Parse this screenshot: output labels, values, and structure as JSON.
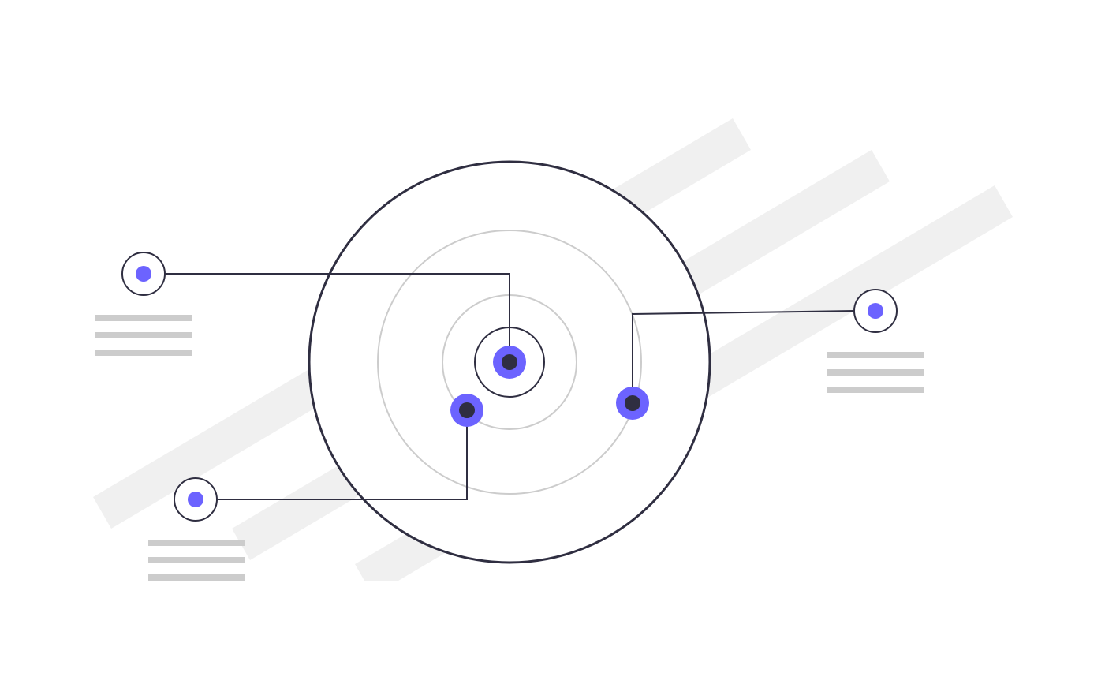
{
  "illustration": {
    "name": "radar-target-diagram",
    "colors": {
      "background": "#ffffff",
      "stripe": "#f0f0f0",
      "outline": "#2f2e41",
      "ring": "#cccccc",
      "accent": "#6c63ff",
      "text_line": "#cccccc"
    },
    "rings": [
      "outer-ring",
      "middle-ring",
      "inner-ring",
      "core-ring"
    ],
    "markers": [
      "center-marker",
      "lower-left-marker",
      "right-marker"
    ],
    "callouts": [
      {
        "name": "callout-top-left",
        "text_lines": 3
      },
      {
        "name": "callout-bottom-left",
        "text_lines": 3
      },
      {
        "name": "callout-right",
        "text_lines": 3
      }
    ]
  }
}
